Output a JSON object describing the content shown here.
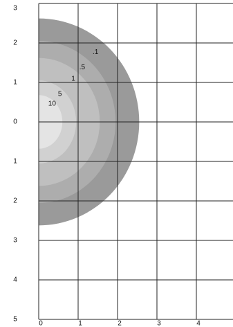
{
  "chart_data": {
    "type": "contour",
    "contours": [
      {
        "name": ".1",
        "rx": 2.55,
        "ry": 2.62,
        "color": "#9a9a9a"
      },
      {
        "name": ".5",
        "rx": 1.95,
        "ry": 2.05,
        "color": "#adadad"
      },
      {
        "name": "1",
        "rx": 1.55,
        "ry": 1.62,
        "color": "#bfbfbf"
      },
      {
        "name": "5",
        "rx": 0.95,
        "ry": 1.05,
        "color": "#d1d1d1"
      },
      {
        "name": "10",
        "rx": 0.6,
        "ry": 0.68,
        "color": "#e4e4e4"
      }
    ],
    "xlim": [
      0,
      4.93
    ],
    "xticks": [
      0,
      1,
      2,
      3,
      4
    ],
    "ylim": [
      -5,
      3
    ],
    "yticks": [
      3,
      2,
      1,
      0,
      {
        "value": -1,
        "label": "1"
      },
      {
        "value": -2,
        "label": "2"
      },
      {
        "value": -3,
        "label": "3"
      },
      {
        "value": -4,
        "label": "4"
      },
      {
        "value": -5,
        "label": "5"
      }
    ],
    "grid": true
  }
}
